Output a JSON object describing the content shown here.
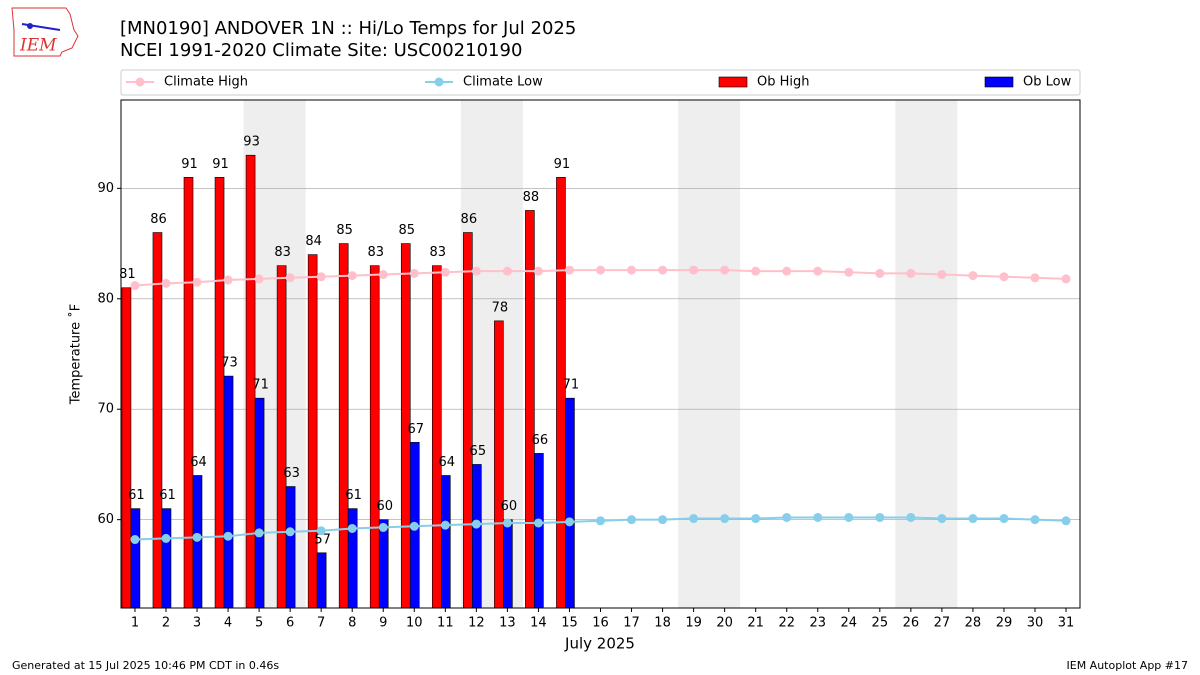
{
  "chart_data": {
    "type": "bar",
    "logo_text": "IEM",
    "title": "[MN0190] ANDOVER 1N :: Hi/Lo Temps for Jul 2025",
    "subtitle": "NCEI 1991-2020 Climate Site: USC00210190",
    "x_label": "July 2025",
    "y_label": "Temperature ˚F",
    "footer_left": "Generated at 15 Jul 2025 10:46 PM CDT in 0.46s",
    "footer_right": "IEM Autoplot App #17",
    "x": [
      1,
      2,
      3,
      4,
      5,
      6,
      7,
      8,
      9,
      10,
      11,
      12,
      13,
      14,
      15,
      16,
      17,
      18,
      19,
      20,
      21,
      22,
      23,
      24,
      25,
      26,
      27,
      28,
      29,
      30,
      31
    ],
    "xlim": [
      0.55,
      31.45
    ],
    "xticks": [
      1,
      2,
      3,
      4,
      5,
      6,
      7,
      8,
      9,
      10,
      11,
      12,
      13,
      14,
      15,
      16,
      17,
      18,
      19,
      20,
      21,
      22,
      23,
      24,
      25,
      26,
      27,
      28,
      29,
      30,
      31
    ],
    "ylim": [
      52,
      98
    ],
    "yticks": [
      60,
      70,
      80,
      90
    ],
    "grid": true,
    "shaded_spans": [
      [
        4.5,
        6.5
      ],
      [
        11.5,
        13.5
      ],
      [
        18.5,
        20.5
      ],
      [
        25.5,
        27.5
      ]
    ],
    "series": [
      {
        "name": "Climate High",
        "type": "line",
        "color": "#ffc0cb",
        "values": [
          81.2,
          81.4,
          81.5,
          81.7,
          81.8,
          81.9,
          82.0,
          82.1,
          82.2,
          82.3,
          82.4,
          82.5,
          82.5,
          82.5,
          82.6,
          82.6,
          82.6,
          82.6,
          82.6,
          82.6,
          82.5,
          82.5,
          82.5,
          82.4,
          82.3,
          82.3,
          82.2,
          82.1,
          82.0,
          81.9,
          81.8
        ]
      },
      {
        "name": "Climate Low",
        "type": "line",
        "color": "#87ceeb",
        "values": [
          58.2,
          58.3,
          58.4,
          58.5,
          58.8,
          58.9,
          59.0,
          59.2,
          59.3,
          59.4,
          59.5,
          59.6,
          59.7,
          59.7,
          59.8,
          59.9,
          60.0,
          60.0,
          60.1,
          60.1,
          60.1,
          60.2,
          60.2,
          60.2,
          60.2,
          60.2,
          60.1,
          60.1,
          60.1,
          60.0,
          59.9
        ]
      },
      {
        "name": "Ob High",
        "type": "bar",
        "color": "#ff0000",
        "values": [
          81,
          86,
          91,
          91,
          93,
          83,
          84,
          85,
          83,
          85,
          83,
          86,
          78,
          88,
          91,
          null,
          null,
          null,
          null,
          null,
          null,
          null,
          null,
          null,
          null,
          null,
          null,
          null,
          null,
          null,
          null
        ]
      },
      {
        "name": "Ob Low",
        "type": "bar",
        "color": "#0000ff",
        "values": [
          61,
          61,
          64,
          73,
          71,
          63,
          57,
          61,
          60,
          67,
          64,
          65,
          60,
          66,
          71,
          null,
          null,
          null,
          null,
          null,
          null,
          null,
          null,
          null,
          null,
          null,
          null,
          null,
          null,
          null,
          null
        ]
      }
    ]
  }
}
